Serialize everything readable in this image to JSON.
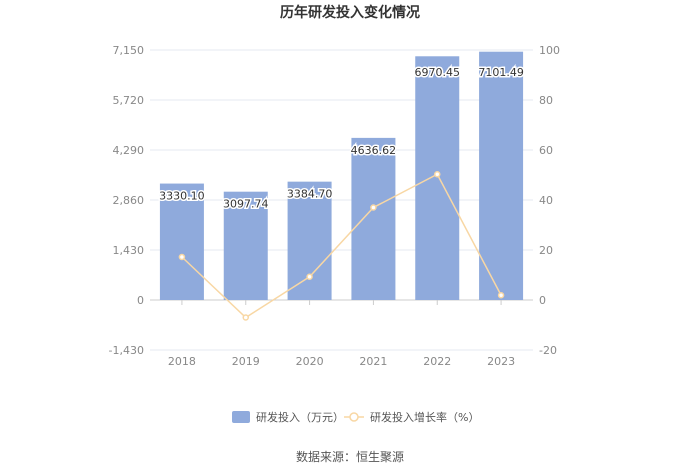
{
  "chart_data": {
    "type": "bar",
    "title": "历年研发投入变化情况",
    "categories": [
      "2018",
      "2019",
      "2020",
      "2021",
      "2022",
      "2023"
    ],
    "series": [
      {
        "name": "研发投入（万元）",
        "type": "bar",
        "axis": "left",
        "values": [
          3330.1,
          3097.74,
          3384.7,
          4636.62,
          6970.45,
          7101.49
        ],
        "labels": [
          "3330.10",
          "3097.74",
          "3384.70",
          "4636.62",
          "6970.45",
          "7101.49"
        ],
        "color": "#8faadc"
      },
      {
        "name": "研发投入增长率（%）",
        "type": "line",
        "axis": "right",
        "values": [
          17.2,
          -7.0,
          9.3,
          37.0,
          50.3,
          1.9
        ],
        "color": "#f8d7a4"
      }
    ],
    "y_left": {
      "ticks": [
        -1430,
        0,
        1430,
        2860,
        4290,
        5720,
        7150
      ],
      "tick_labels": [
        "-1,430",
        "0",
        "1,430",
        "2,860",
        "4,290",
        "5,720",
        "7,150"
      ],
      "ylim": [
        -1430,
        7150
      ]
    },
    "y_right": {
      "ticks": [
        -20,
        0,
        20,
        40,
        60,
        80,
        100
      ],
      "tick_labels": [
        "-20",
        "0",
        "20",
        "40",
        "60",
        "80",
        "100"
      ],
      "ylim": [
        -20,
        100
      ]
    },
    "grid": true,
    "legend_position": "bottom",
    "source": "数据来源：恒生聚源"
  }
}
